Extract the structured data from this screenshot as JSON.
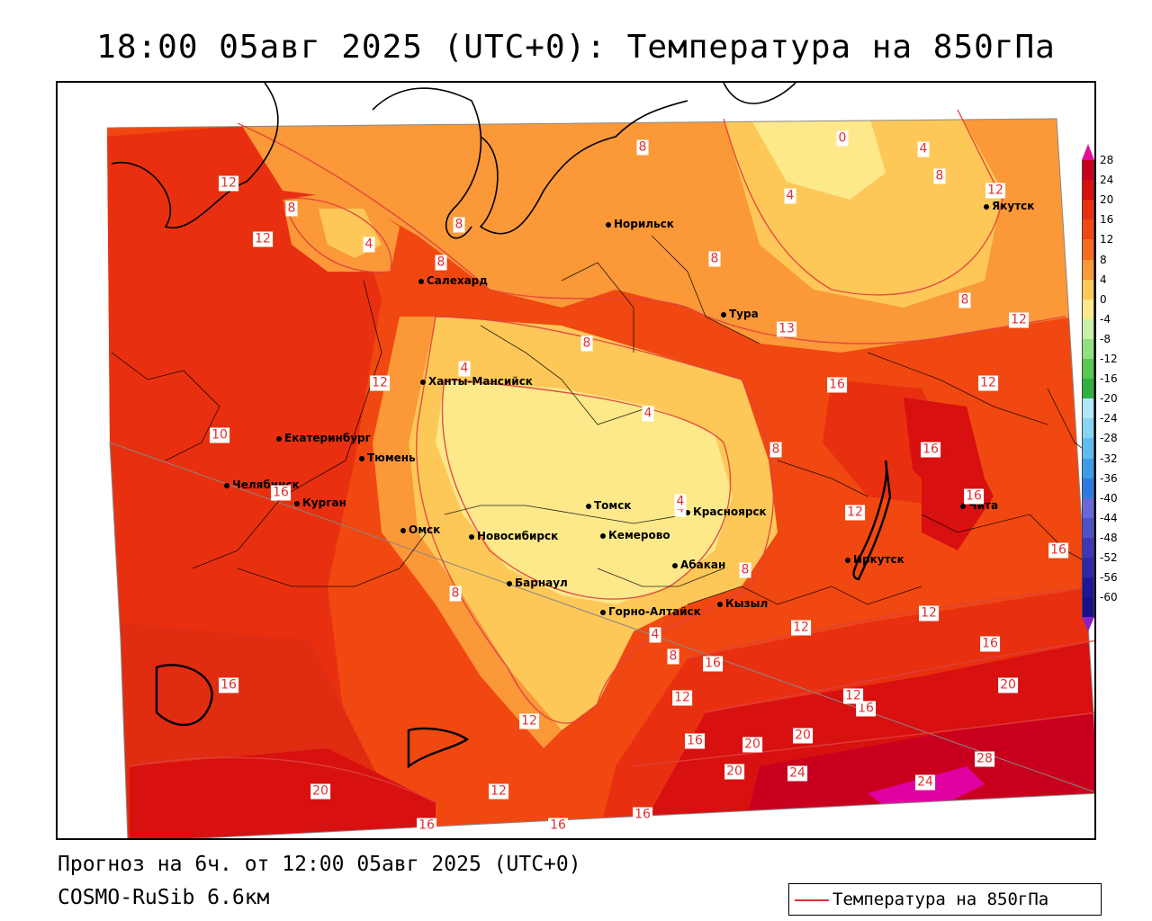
{
  "title": "18:00 05авг 2025 (UTC+0): Температура на 850гПа",
  "footer": {
    "forecast": "Прогноз на 6ч. от 12:00 05авг 2025 (UTC+0)",
    "model": "COSMO-RuSib 6.6км"
  },
  "legend": {
    "label": "Температура на 850гПа",
    "line_color": "#e03030"
  },
  "color_scale": {
    "ticks": [
      "28",
      "24",
      "20",
      "16",
      "12",
      "8",
      "4",
      "0",
      "-4",
      "-8",
      "-12",
      "-16",
      "-20",
      "-24",
      "-28",
      "-32",
      "-36",
      "-40",
      "-44",
      "-48",
      "-52",
      "-56",
      "-60"
    ],
    "colors": [
      "#c8001e",
      "#d81010",
      "#e83010",
      "#f04810",
      "#f86c20",
      "#fb9838",
      "#fdc858",
      "#fde88a",
      "#c8f0a8",
      "#90e080",
      "#58c850",
      "#30b040",
      "#b0e8f8",
      "#88d4f4",
      "#60bcf0",
      "#3c9ce8",
      "#2c7ce0",
      "#6868d8",
      "#5050c8",
      "#3c38b8",
      "#2c28a8",
      "#1c1898",
      "#14108a"
    ]
  },
  "cities": [
    {
      "name": "Норильск"
    },
    {
      "name": "Якутск"
    },
    {
      "name": "Салехард"
    },
    {
      "name": "Тура"
    },
    {
      "name": "Ханты-Мансийск"
    },
    {
      "name": "Екатеринбург"
    },
    {
      "name": "Тюмень"
    },
    {
      "name": "Челябинск"
    },
    {
      "name": "Курган"
    },
    {
      "name": "Омск"
    },
    {
      "name": "Томск"
    },
    {
      "name": "Красноярск"
    },
    {
      "name": "Новосибирск"
    },
    {
      "name": "Кемерово"
    },
    {
      "name": "Абакан"
    },
    {
      "name": "Барнаул"
    },
    {
      "name": "Иркутск"
    },
    {
      "name": "Чита"
    },
    {
      "name": "Кызыл"
    },
    {
      "name": "Горно-Алтайск"
    }
  ],
  "isotherm_labels": [
    "12",
    "12",
    "8",
    "4",
    "8",
    "8",
    "8",
    "0",
    "4",
    "8",
    "4",
    "12",
    "8",
    "12",
    "8",
    "13",
    "12",
    "4",
    "4",
    "12",
    "16",
    "16",
    "10",
    "16",
    "8",
    "16",
    "4",
    "8",
    "16",
    "12",
    "12",
    "16",
    "4",
    "8",
    "16",
    "8",
    "12",
    "12",
    "16",
    "20",
    "16",
    "12",
    "20",
    "20",
    "16",
    "20",
    "24",
    "24",
    "28",
    "20",
    "12",
    "16",
    "16",
    "16",
    "8",
    "12",
    "4"
  ]
}
